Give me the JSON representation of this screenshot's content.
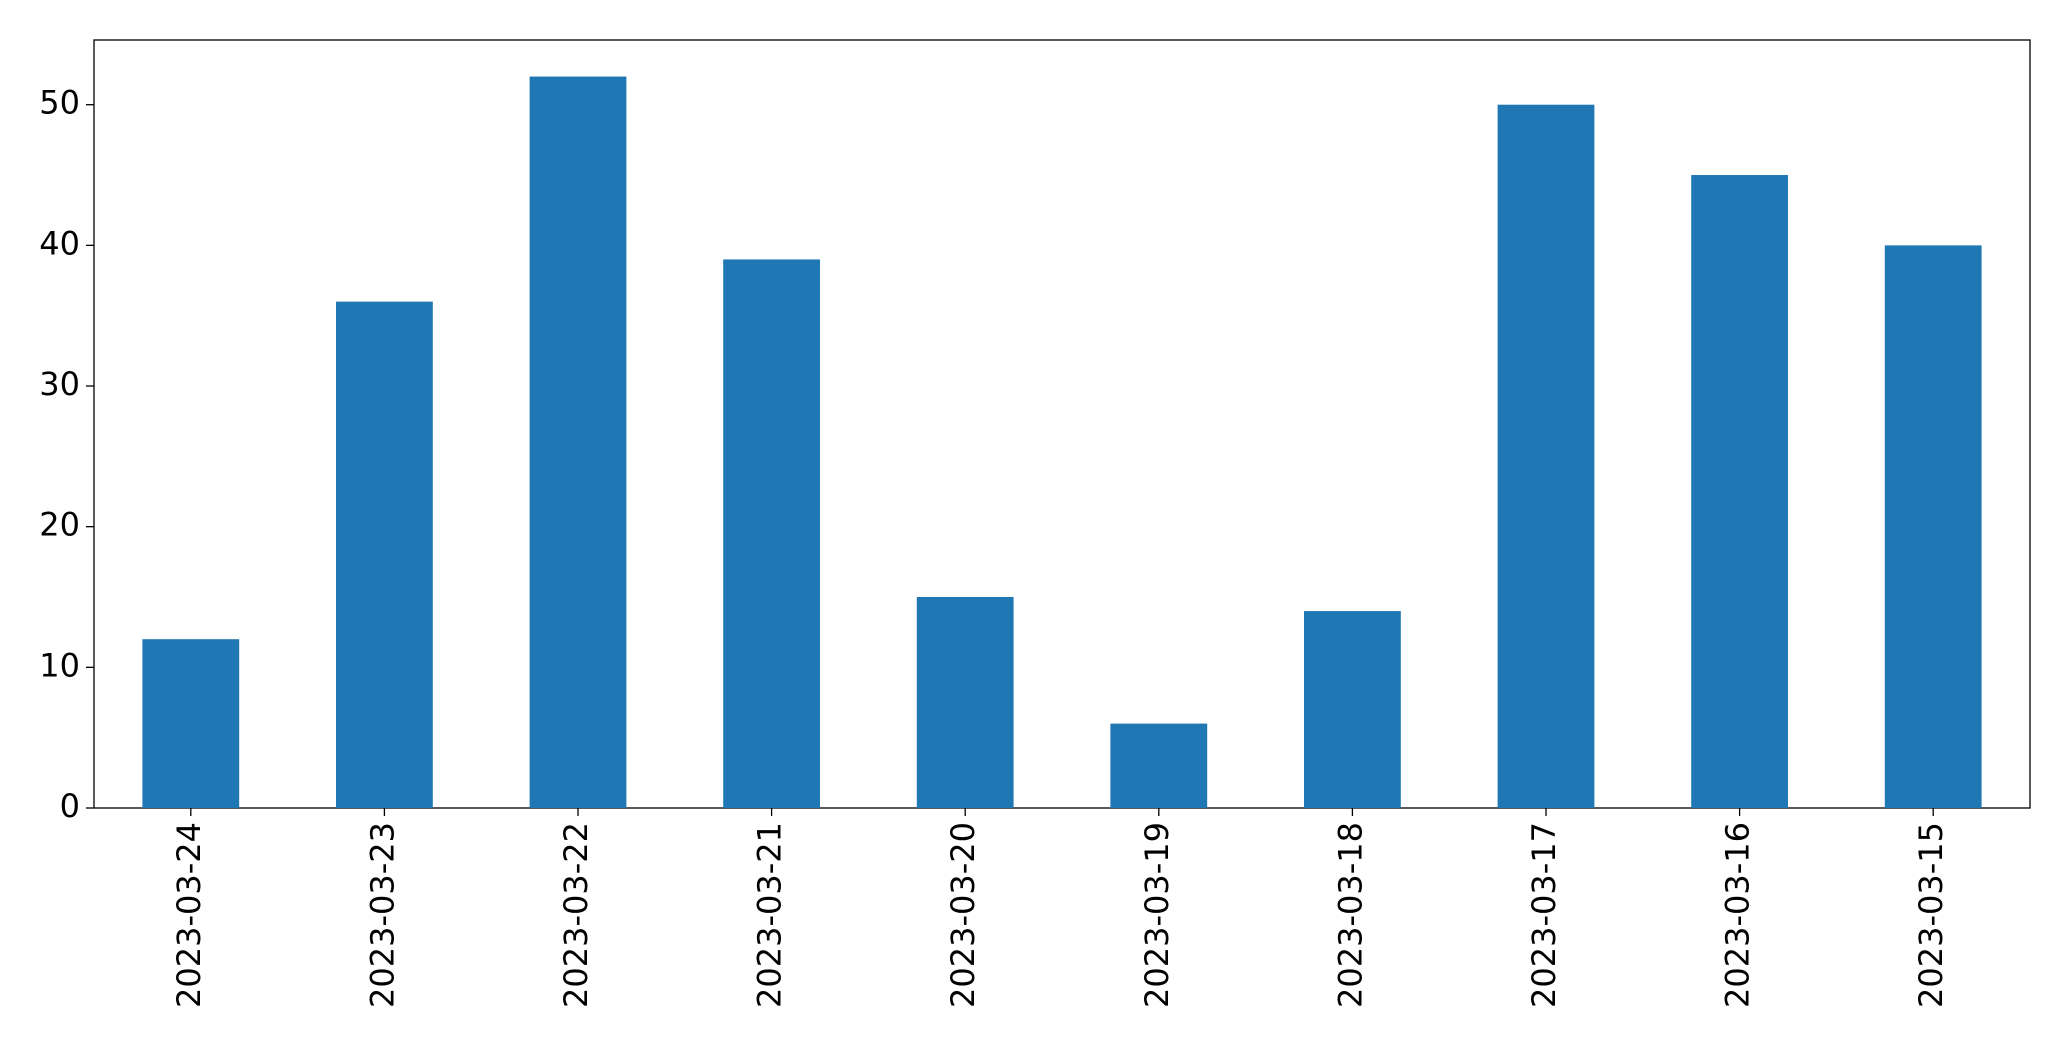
{
  "chart_data": {
    "type": "bar",
    "categories": [
      "2023-03-24",
      "2023-03-23",
      "2023-03-22",
      "2023-03-21",
      "2023-03-20",
      "2023-03-19",
      "2023-03-18",
      "2023-03-17",
      "2023-03-16",
      "2023-03-15"
    ],
    "values": [
      12,
      36,
      52,
      39,
      15,
      6,
      14,
      50,
      45,
      40
    ],
    "color": "#1f77b4",
    "ylim": [
      0,
      54.6
    ],
    "yticks": [
      0,
      10,
      20,
      30,
      40,
      50
    ],
    "grid": false
  }
}
